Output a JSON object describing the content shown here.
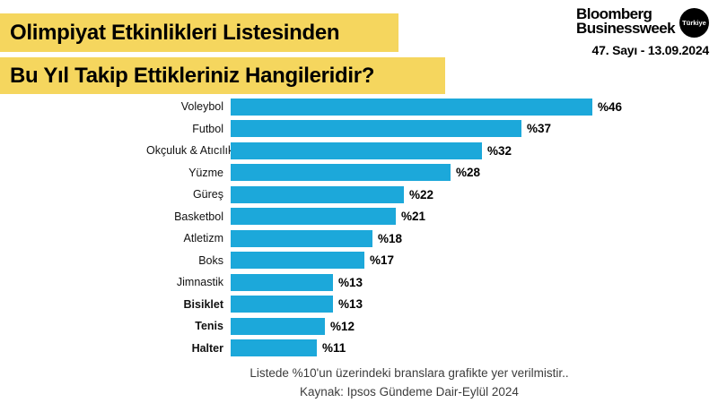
{
  "page": {
    "title_line1": "Olimpiyat Etkinlikleri Listesinden",
    "title_line2": "Bu Yıl Takip Ettikleriniz Hangileridir?"
  },
  "masthead": {
    "brand_line1": "Bloomberg",
    "brand_line2": "Businessweek",
    "edition_badge": "Türkiye",
    "issue_info": "47. Sayı - 13.09.2024"
  },
  "chart_data": {
    "type": "bar",
    "orientation": "horizontal",
    "categories": [
      "Voleybol",
      "Futbol",
      "Okçuluk & Atıcılık",
      "Yüzme",
      "Güreş",
      "Basketbol",
      "Atletizm",
      "Boks",
      "Jimnastik",
      "Bisiklet",
      "Tenis",
      "Halter"
    ],
    "values": [
      46,
      37,
      32,
      28,
      22,
      21,
      18,
      17,
      13,
      13,
      12,
      11
    ],
    "value_labels": [
      "%46",
      "%37",
      "%32",
      "%28",
      "%22",
      "%21",
      "%18",
      "%17",
      "%13",
      "%13",
      "%12",
      "%11"
    ],
    "bold_labels": [
      "Bisiklet",
      "Tenis",
      "Halter"
    ],
    "xlim": [
      0,
      46
    ],
    "bar_color": "#1ca8da",
    "grid": false,
    "legend": "none"
  },
  "footnotes": {
    "note": "Listede %10'un üzerindeki branslara grafikte yer verilmistir..",
    "source": "Kaynak: Ipsos Gündeme Dair-Eylül 2024"
  },
  "colors": {
    "banner_yellow": "#f5d65e",
    "bar_blue": "#1ca8da",
    "text_black": "#000000"
  }
}
